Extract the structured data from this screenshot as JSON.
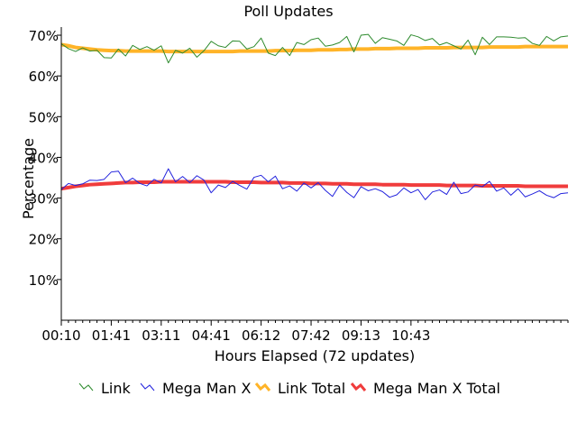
{
  "chart_data": {
    "type": "line",
    "title": "Poll Updates",
    "xlabel": "Hours Elapsed (72 updates)",
    "ylabel": "Percentage",
    "x_tick_labels": [
      "00:10",
      "01:41",
      "03:11",
      "04:41",
      "06:12",
      "07:42",
      "09:13",
      "10:43"
    ],
    "x_tick_index": [
      0,
      7,
      14,
      21,
      28,
      35,
      42,
      49
    ],
    "y_ticks": [
      10,
      20,
      30,
      40,
      50,
      60,
      70
    ],
    "y_tick_labels": [
      "10%",
      "20%",
      "30%",
      "40%",
      "50%",
      "60%",
      "70%"
    ],
    "ylim": [
      0,
      72
    ],
    "n_updates": 72,
    "grid": false,
    "legend_position": "bottom",
    "series": [
      {
        "name": "Link",
        "color": "#2e8b2e",
        "width": 1,
        "values": [
          67.9,
          66.7,
          66.0,
          66.9,
          66.1,
          66.3,
          64.5,
          64.4,
          66.6,
          64.9,
          67.5,
          66.5,
          67.2,
          66.3,
          67.4,
          63.2,
          66.3,
          65.6,
          66.8,
          64.6,
          66.2,
          68.5,
          67.4,
          67.0,
          68.6,
          68.5,
          66.6,
          67.2,
          69.3,
          65.6,
          65.0,
          67.0,
          65.0,
          68.2,
          67.7,
          68.9,
          69.3,
          67.3,
          67.6,
          68.2,
          69.7,
          65.9,
          70.0,
          70.2,
          68.0,
          69.4,
          69.0,
          68.6,
          67.5,
          70.1,
          69.6,
          68.7,
          69.2,
          67.6,
          68.2,
          67.4,
          66.6,
          68.8,
          65.2,
          69.5,
          67.7,
          69.6,
          69.6,
          69.5,
          69.3,
          69.4,
          68.0,
          67.5,
          69.7,
          68.6,
          69.6,
          69.8
        ]
      },
      {
        "name": "Mega Man X",
        "color": "#2222dd",
        "width": 1,
        "values": [
          32.1,
          33.6,
          33.1,
          33.5,
          34.4,
          34.3,
          34.6,
          36.4,
          36.6,
          33.8,
          34.9,
          33.6,
          33.0,
          34.6,
          33.7,
          37.2,
          34.0,
          35.3,
          33.8,
          35.5,
          34.4,
          31.3,
          33.2,
          32.6,
          34.1,
          33.1,
          32.2,
          35.1,
          35.6,
          34.0,
          35.4,
          32.3,
          33.0,
          31.7,
          33.7,
          32.5,
          33.8,
          31.9,
          30.4,
          33.2,
          31.4,
          30.1,
          32.8,
          31.8,
          32.3,
          31.6,
          30.2,
          30.8,
          32.5,
          31.3,
          32.1,
          29.6,
          31.5,
          32.0,
          30.9,
          33.9,
          31.1,
          31.5,
          33.2,
          32.8,
          34.1,
          31.7,
          32.5,
          30.7,
          32.3,
          30.3,
          31.0,
          31.8,
          30.7,
          30.1,
          31.1,
          31.3
        ]
      },
      {
        "name": "Link Total",
        "color": "#ffb428",
        "width": 4,
        "values": [
          67.7,
          67.4,
          67.0,
          66.8,
          66.6,
          66.4,
          66.3,
          66.2,
          66.2,
          66.1,
          66.1,
          66.1,
          66.1,
          66.1,
          66.1,
          66.0,
          66.0,
          66.0,
          66.0,
          66.0,
          66.0,
          66.0,
          66.0,
          66.0,
          66.0,
          66.1,
          66.1,
          66.1,
          66.1,
          66.1,
          66.2,
          66.2,
          66.2,
          66.3,
          66.3,
          66.3,
          66.4,
          66.4,
          66.4,
          66.5,
          66.5,
          66.6,
          66.6,
          66.6,
          66.7,
          66.7,
          66.7,
          66.8,
          66.8,
          66.8,
          66.8,
          66.9,
          66.9,
          66.9,
          66.9,
          67.0,
          67.0,
          67.0,
          67.0,
          67.0,
          67.1,
          67.1,
          67.1,
          67.1,
          67.1,
          67.2,
          67.2,
          67.2,
          67.2,
          67.2,
          67.2,
          67.2
        ]
      },
      {
        "name": "Mega Man X Total",
        "color": "#f03c3c",
        "width": 4,
        "values": [
          32.3,
          32.6,
          32.9,
          33.1,
          33.3,
          33.4,
          33.5,
          33.6,
          33.7,
          33.8,
          33.8,
          33.9,
          33.9,
          33.9,
          34.0,
          34.0,
          34.0,
          34.0,
          34.0,
          34.0,
          34.0,
          34.0,
          34.0,
          34.0,
          33.9,
          33.9,
          33.9,
          33.9,
          33.8,
          33.8,
          33.8,
          33.8,
          33.7,
          33.7,
          33.7,
          33.6,
          33.6,
          33.6,
          33.5,
          33.5,
          33.5,
          33.4,
          33.4,
          33.4,
          33.4,
          33.3,
          33.3,
          33.3,
          33.3,
          33.2,
          33.2,
          33.2,
          33.2,
          33.2,
          33.1,
          33.1,
          33.1,
          33.1,
          33.1,
          33.0,
          33.0,
          33.0,
          33.0,
          33.0,
          33.0,
          32.9,
          32.9,
          32.9,
          32.9,
          32.9,
          32.9,
          32.9
        ]
      }
    ]
  }
}
